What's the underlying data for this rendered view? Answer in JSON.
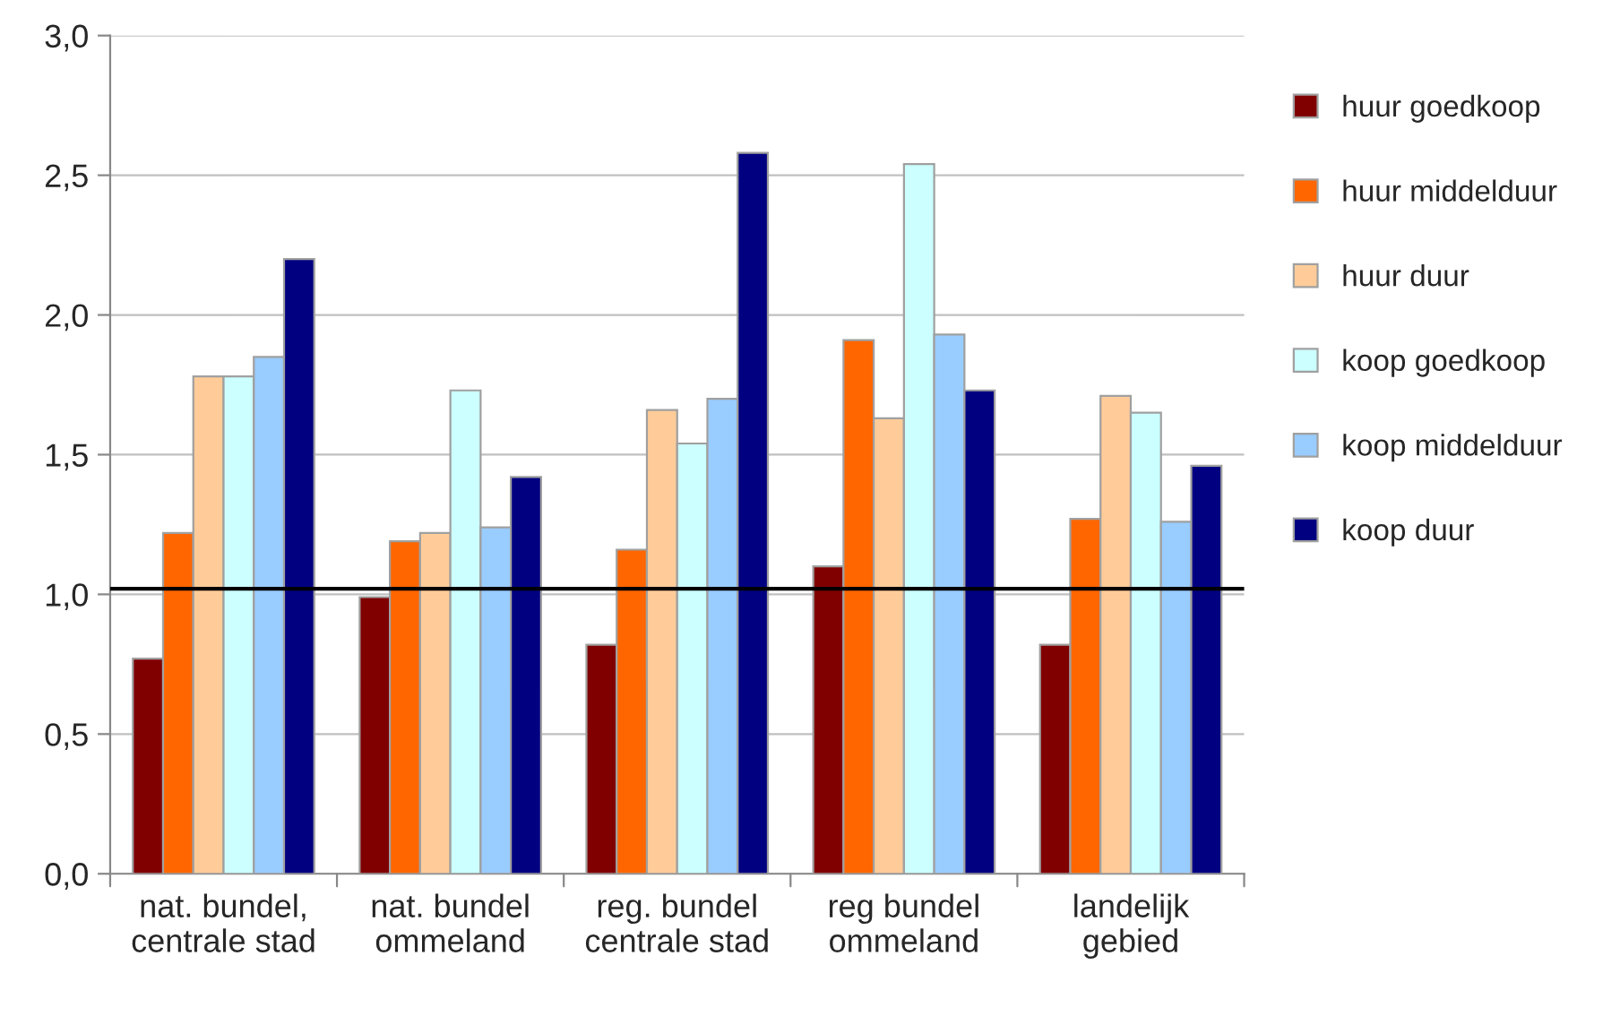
{
  "chart_data": {
    "type": "bar",
    "categories": [
      "nat. bundel,\ncentrale stad",
      "nat. bundel\nommeland",
      "reg. bundel\ncentrale stad",
      "reg bundel\nommeland",
      "landelijk\ngebied"
    ],
    "series": [
      {
        "name": "huur goedkoop",
        "color": "#800000",
        "values": [
          0.77,
          0.99,
          0.82,
          1.1,
          0.82
        ]
      },
      {
        "name": "huur middelduur",
        "color": "#ff6600",
        "values": [
          1.22,
          1.19,
          1.16,
          1.91,
          1.27
        ]
      },
      {
        "name": "huur duur",
        "color": "#ffcc99",
        "values": [
          1.78,
          1.22,
          1.66,
          1.63,
          1.71
        ]
      },
      {
        "name": "koop goedkoop",
        "color": "#ccffff",
        "values": [
          1.78,
          1.73,
          1.54,
          2.54,
          1.65
        ]
      },
      {
        "name": "koop middelduur",
        "color": "#99ccff",
        "values": [
          1.85,
          1.24,
          1.7,
          1.93,
          1.26
        ]
      },
      {
        "name": "koop duur",
        "color": "#000080",
        "values": [
          2.2,
          1.42,
          2.58,
          1.73,
          1.46
        ]
      }
    ],
    "ylim": [
      0,
      3
    ],
    "yticks": [
      {
        "value": 0,
        "label": "0,0"
      },
      {
        "value": 0.5,
        "label": "0,5"
      },
      {
        "value": 1,
        "label": "1,0"
      },
      {
        "value": 1.5,
        "label": "1,5"
      },
      {
        "value": 2,
        "label": "2,0"
      },
      {
        "value": 2.5,
        "label": "2,5"
      },
      {
        "value": 3,
        "label": "3,0"
      }
    ],
    "ref_lines": [
      {
        "axis": "y",
        "value": 1.02,
        "color": "#000000"
      }
    ],
    "grid": "y",
    "legend": "right"
  }
}
